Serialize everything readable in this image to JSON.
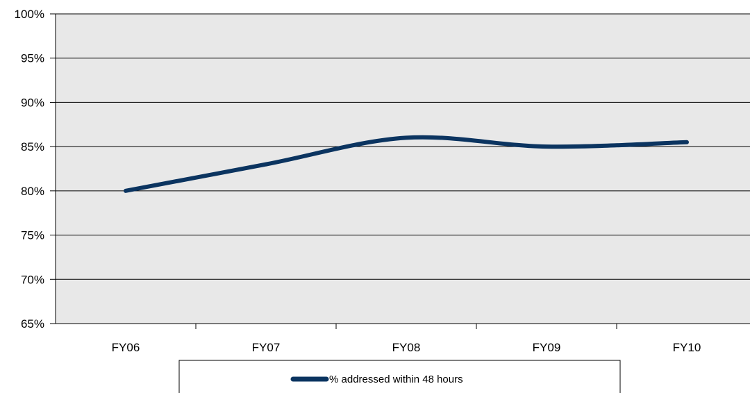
{
  "chart_data": {
    "type": "line",
    "categories": [
      "FY06",
      "FY07",
      "FY08",
      "FY09",
      "FY10"
    ],
    "series": [
      {
        "name": "% addressed within 48 hours",
        "values": [
          80,
          83,
          86,
          85,
          85.5
        ],
        "color": "#0b3460"
      }
    ],
    "ylim": [
      65,
      100
    ],
    "yticks": [
      65,
      70,
      75,
      80,
      85,
      90,
      95,
      100
    ],
    "ytick_labels": [
      "65%",
      "70%",
      "75%",
      "80%",
      "85%",
      "90%",
      "95%",
      "100%"
    ],
    "grid": true,
    "plot_background": "#e8e8e8",
    "legend_position": "bottom-center",
    "smooth": true
  }
}
